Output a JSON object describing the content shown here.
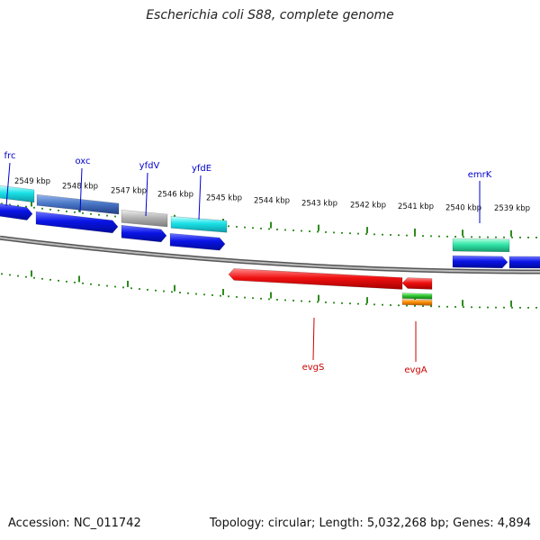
{
  "title": "Escherichia coli S88, complete genome",
  "footer": {
    "accession": "Accession: NC_011742",
    "summary": "Topology: circular; Length: 5,032,268 bp; Genes: 4,894"
  },
  "colors": {
    "backbone": "#888888",
    "tick": "#2e8b1e",
    "forward_gene": "#0a14e6",
    "cds_cyan": "#19e1e6",
    "cds_steel": "#4a78c8",
    "cds_grey": "#b4b4b4",
    "cds_teal": "#33e6a8",
    "reverse_gene": "#f01010",
    "feature_green": "#2ec42e",
    "feature_orange": "#ff8c00",
    "label_forward": "#0000cc",
    "label_reverse": "#cc0000"
  },
  "scale": {
    "unit": "kbp",
    "labels": [
      "2549 kbp",
      "2548 kbp",
      "2547 kbp",
      "2546 kbp",
      "2545 kbp",
      "2544 kbp",
      "2543 kbp",
      "2542 kbp",
      "2541 kbp",
      "2540 kbp",
      "2539 kbp"
    ]
  },
  "features": [
    {
      "name": "frc",
      "strand": "forward"
    },
    {
      "name": "oxc",
      "strand": "forward"
    },
    {
      "name": "yfdV",
      "strand": "forward"
    },
    {
      "name": "yfdE",
      "strand": "forward"
    },
    {
      "name": "emrK",
      "strand": "forward"
    },
    {
      "name": "evgS",
      "strand": "reverse"
    },
    {
      "name": "evgA",
      "strand": "reverse"
    }
  ]
}
